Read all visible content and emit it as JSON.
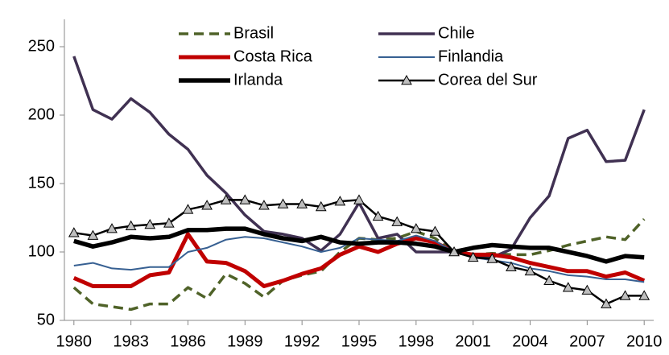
{
  "chart_data": {
    "type": "line",
    "x": [
      1980,
      1981,
      1982,
      1983,
      1984,
      1985,
      1986,
      1987,
      1988,
      1989,
      1990,
      1991,
      1992,
      1993,
      1994,
      1995,
      1996,
      1997,
      1998,
      1999,
      2000,
      2001,
      2002,
      2003,
      2004,
      2005,
      2006,
      2007,
      2008,
      2009,
      2010
    ],
    "xlim": [
      1979.5,
      2010.5
    ],
    "xticks": [
      1980,
      1983,
      1986,
      1989,
      1992,
      1995,
      1998,
      2001,
      2004,
      2007,
      2010
    ],
    "ylim": [
      50,
      270
    ],
    "yticks": [
      50,
      100,
      150,
      200,
      250
    ],
    "grid": false,
    "series": [
      {
        "name": "Brasil",
        "color": "#4f6228",
        "style": "dashed",
        "values": [
          74,
          62,
          60,
          58,
          62,
          62,
          74,
          66,
          84,
          77,
          67,
          79,
          83,
          86,
          100,
          110,
          109,
          110,
          115,
          110,
          100,
          98,
          99,
          98,
          98,
          101,
          105,
          108,
          111,
          109,
          124
        ]
      },
      {
        "name": "Chile",
        "color": "#403152",
        "style": "solid",
        "values": [
          243,
          204,
          197,
          212,
          202,
          186,
          175,
          156,
          143,
          127,
          115,
          113,
          110,
          101,
          113,
          136,
          110,
          113,
          100,
          100,
          100,
          97,
          96,
          102,
          125,
          141,
          183,
          189,
          166,
          167,
          204
        ]
      },
      {
        "name": "Costa Rica",
        "color": "#c00000",
        "style": "solid",
        "values": [
          81,
          75,
          75,
          75,
          83,
          85,
          113,
          93,
          92,
          86,
          75,
          79,
          84,
          88,
          98,
          104,
          100,
          106,
          110,
          107,
          100,
          98,
          98,
          96,
          92,
          89,
          86,
          86,
          82,
          85,
          79
        ]
      },
      {
        "name": "Finlandia",
        "color": "#376092",
        "style": "solid",
        "values": [
          90,
          92,
          88,
          87,
          89,
          89,
          100,
          103,
          109,
          111,
          110,
          107,
          104,
          100,
          103,
          110,
          109,
          108,
          112,
          108,
          100,
          96,
          94,
          92,
          88,
          86,
          83,
          82,
          80,
          80,
          78
        ]
      },
      {
        "name": "Irlanda",
        "color": "#000000",
        "style": "solid",
        "values": [
          108,
          104,
          107,
          111,
          110,
          111,
          116,
          116,
          117,
          117,
          113,
          110,
          108,
          111,
          107,
          106,
          107,
          107,
          106,
          104,
          100,
          103,
          105,
          104,
          103,
          103,
          100,
          97,
          93,
          97,
          96
        ]
      },
      {
        "name": "Corea del Sur",
        "color": "#000000",
        "style": "solid",
        "marker": "triangle",
        "values": [
          114,
          112,
          117,
          119,
          120,
          121,
          131,
          134,
          138,
          138,
          134,
          135,
          135,
          133,
          137,
          138,
          126,
          122,
          117,
          115,
          100,
          96,
          95,
          89,
          86,
          79,
          74,
          72,
          62,
          68,
          68
        ]
      }
    ]
  }
}
